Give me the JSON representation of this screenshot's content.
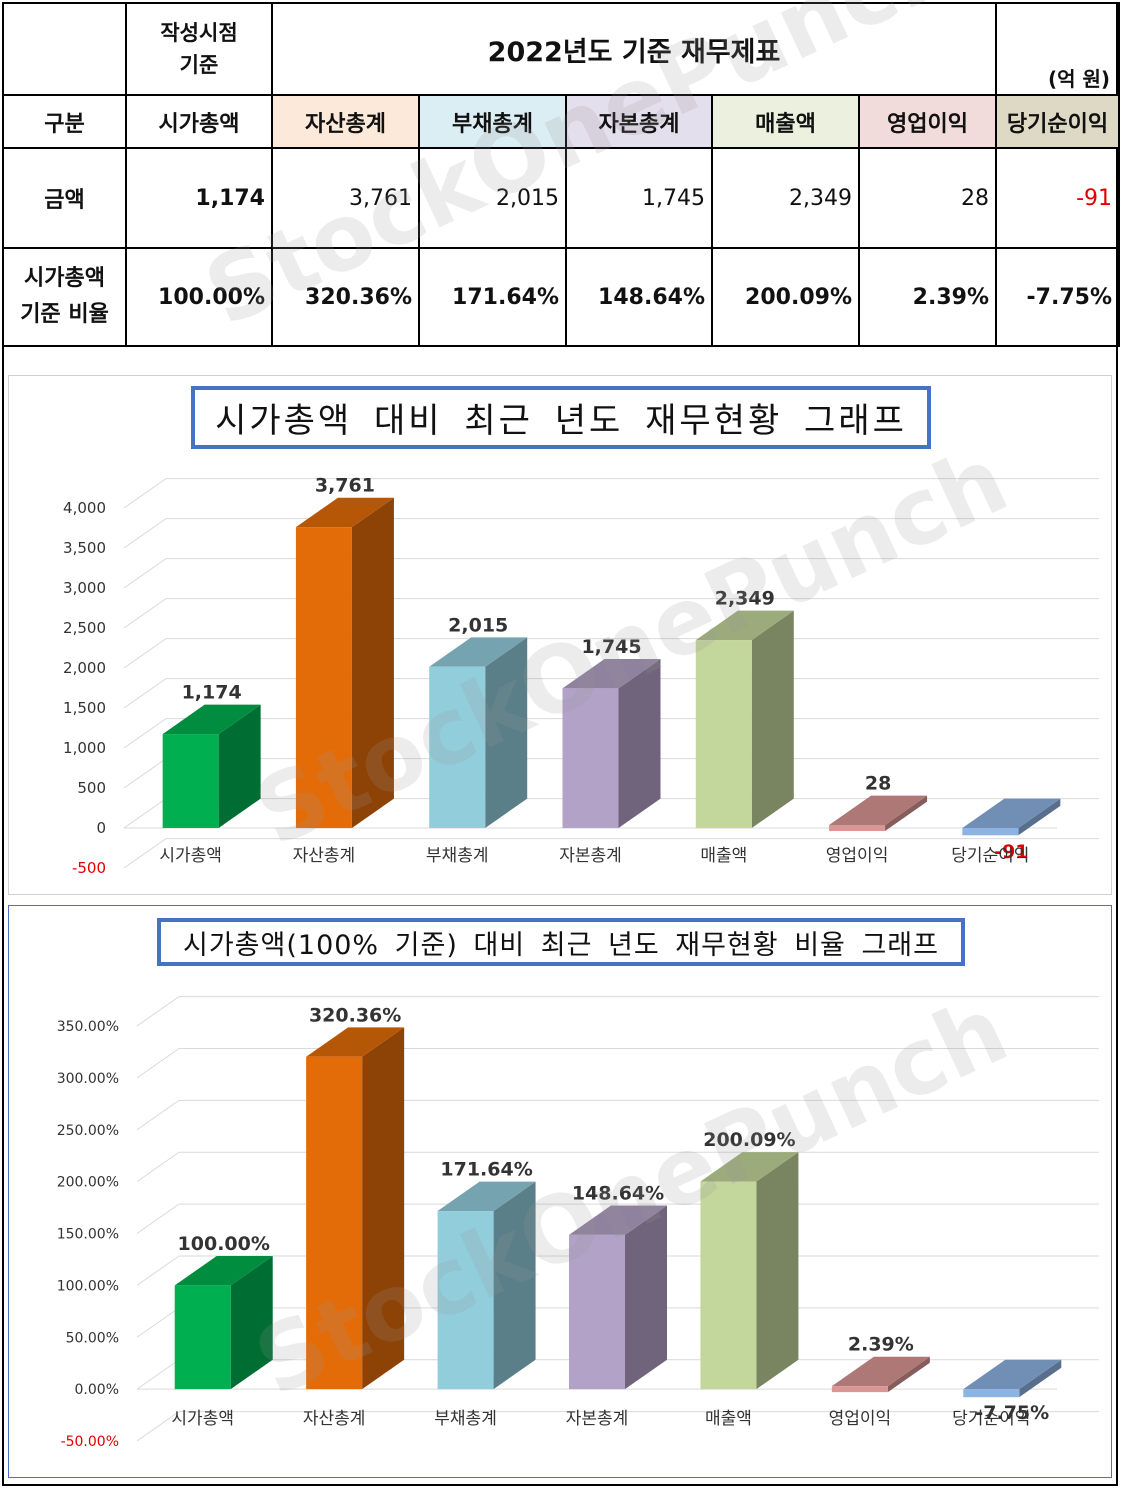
{
  "table": {
    "corner": "",
    "date_header_line1": "작성시점",
    "date_header_line2": "기준",
    "title": "2022년도 기준 재무제표",
    "unit": "(억 원)",
    "row_header_label": "구분",
    "columns": [
      "시가총액",
      "자산총계",
      "부채총계",
      "자본총계",
      "매출액",
      "영업이익",
      "당기순이익"
    ],
    "column_colors": [
      "#ffffff",
      "#fde9d9",
      "#dbeef4",
      "#e4dfec",
      "#ebf1de",
      "#f2dcdb",
      "#ddd9c4"
    ],
    "amount_label": "금액",
    "amounts": [
      "1,174",
      "3,761",
      "2,015",
      "1,745",
      "2,349",
      "28",
      "-91"
    ],
    "ratio_label_line1": "시가총액",
    "ratio_label_line2": "기준 비율",
    "ratios": [
      "100.00%",
      "320.36%",
      "171.64%",
      "148.64%",
      "200.09%",
      "2.39%",
      "-7.75%"
    ]
  },
  "watermark": "StockOnePunch",
  "chart_data": [
    {
      "type": "bar",
      "title": "시가총액 대비 최근 년도 재무현황 그래프",
      "categories": [
        "시가총액",
        "자산총계",
        "부채총계",
        "자본총계",
        "매출액",
        "영업이익",
        "당기순이익"
      ],
      "values": [
        1174,
        3761,
        2015,
        1745,
        2349,
        28,
        -91
      ],
      "data_labels": [
        "1,174",
        "3,761",
        "2,015",
        "1,745",
        "2,349",
        "28",
        "-91"
      ],
      "ylim": [
        -500,
        4000
      ],
      "yticks": [
        "-500",
        "0",
        "500",
        "1,000",
        "1,500",
        "2,000",
        "2,500",
        "3,000",
        "3,500",
        "4,000"
      ],
      "colors": [
        "#00b050",
        "#e36c09",
        "#92cddc",
        "#b3a2c7",
        "#c3d69b",
        "#d99694",
        "#8db3e2"
      ],
      "grid": true
    },
    {
      "type": "bar",
      "title": "시가총액(100% 기준) 대비 최근 년도 재무현황 비율 그래프",
      "categories": [
        "시가총액",
        "자산총계",
        "부채총계",
        "자본총계",
        "매출액",
        "영업이익",
        "당기순이익"
      ],
      "values": [
        100.0,
        320.36,
        171.64,
        148.64,
        200.09,
        2.39,
        -7.75
      ],
      "data_labels": [
        "100.00%",
        "320.36%",
        "171.64%",
        "148.64%",
        "200.09%",
        "2.39%",
        "-7.75%"
      ],
      "ylim": [
        -50,
        350
      ],
      "yticks": [
        "-50.00%",
        "0.00%",
        "50.00%",
        "100.00%",
        "150.00%",
        "200.00%",
        "250.00%",
        "300.00%",
        "350.00%"
      ],
      "colors": [
        "#00b050",
        "#e36c09",
        "#92cddc",
        "#b3a2c7",
        "#c3d69b",
        "#d99694",
        "#8db3e2"
      ],
      "grid": true
    }
  ]
}
